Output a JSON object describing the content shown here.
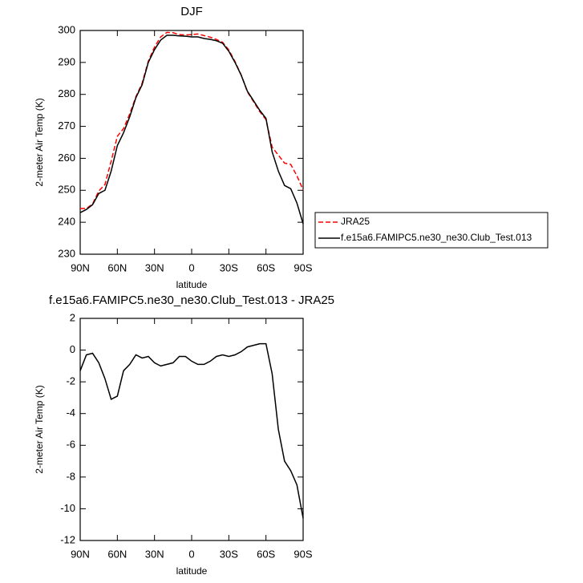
{
  "chart_data": [
    {
      "type": "line",
      "title": "DJF",
      "x_label": "latitude",
      "y_label": "2-meter Air Temp (K)",
      "x": [
        90,
        85,
        80,
        75,
        70,
        65,
        60,
        55,
        50,
        45,
        40,
        35,
        30,
        25,
        20,
        15,
        10,
        5,
        0,
        -5,
        -10,
        -15,
        -20,
        -25,
        -30,
        -35,
        -40,
        -45,
        -50,
        -55,
        -60,
        -65,
        -70,
        -75,
        -80,
        -85,
        -90
      ],
      "xlim": [
        90,
        -90
      ],
      "xticks": [
        {
          "value": 90,
          "label": "90N"
        },
        {
          "value": 60,
          "label": "60N"
        },
        {
          "value": 30,
          "label": "30N"
        },
        0,
        {
          "value": -30,
          "label": "30S"
        },
        {
          "value": -60,
          "label": "60S"
        },
        {
          "value": -90,
          "label": "90S"
        }
      ],
      "ylim": [
        230,
        300
      ],
      "yticks": [
        230,
        240,
        250,
        260,
        270,
        280,
        290,
        300
      ],
      "legend": "right",
      "series": [
        {
          "name": "JRA25",
          "color": "#ff0000",
          "line_style": "dashed",
          "values": [
            244.3,
            244.3,
            245.7,
            249.8,
            251.8,
            259.1,
            266.9,
            269.3,
            273.9,
            279.3,
            283.5,
            290.4,
            294.8,
            298,
            299.4,
            299.3,
            298.7,
            298.6,
            298.7,
            298.9,
            298.4,
            297.9,
            297.2,
            296.3,
            293.9,
            290.3,
            286.1,
            280.8,
            277.7,
            274.6,
            272.1,
            263.5,
            261,
            258.5,
            258.1,
            254.5,
            250.1
          ]
        },
        {
          "name": "f.e15a6.FAMIPC5.ne30_ne30.Club_Test.013",
          "color": "#000000",
          "line_style": "solid",
          "values": [
            243,
            244,
            245.5,
            249,
            250,
            256,
            264,
            268,
            273,
            279,
            283,
            290,
            294,
            297,
            298.5,
            298.5,
            298.3,
            298.2,
            298,
            298,
            297.5,
            297.2,
            296.8,
            296,
            293.5,
            290,
            286,
            281,
            278,
            275,
            272.5,
            262,
            256,
            251.5,
            250.5,
            246,
            239.5
          ]
        }
      ]
    },
    {
      "type": "line",
      "title": "f.e15a6.FAMIPC5.ne30_ne30.Club_Test.013 - JRA25",
      "x_label": "latitude",
      "y_label": "2-meter Air Temp (K)",
      "x": [
        90,
        85,
        80,
        75,
        70,
        65,
        60,
        55,
        50,
        45,
        40,
        35,
        30,
        25,
        20,
        15,
        10,
        5,
        0,
        -5,
        -10,
        -15,
        -20,
        -25,
        -30,
        -35,
        -40,
        -45,
        -50,
        -55,
        -60,
        -65,
        -70,
        -75,
        -80,
        -85,
        -90
      ],
      "xlim": [
        90,
        -90
      ],
      "xticks": [
        {
          "value": 90,
          "label": "90N"
        },
        {
          "value": 60,
          "label": "60N"
        },
        {
          "value": 30,
          "label": "30N"
        },
        0,
        {
          "value": -30,
          "label": "30S"
        },
        {
          "value": -60,
          "label": "60S"
        },
        {
          "value": -90,
          "label": "90S"
        }
      ],
      "ylim": [
        -12,
        2
      ],
      "yticks": [
        -12,
        -10,
        -8,
        -6,
        -4,
        -2,
        0,
        2
      ],
      "series": [
        {
          "color": "#000000",
          "line_style": "solid",
          "values": [
            -1.3,
            -0.3,
            -0.2,
            -0.8,
            -1.8,
            -3.1,
            -2.9,
            -1.3,
            -0.9,
            -0.3,
            -0.5,
            -0.4,
            -0.8,
            -1.0,
            -0.9,
            -0.8,
            -0.4,
            -0.4,
            -0.7,
            -0.9,
            -0.9,
            -0.7,
            -0.4,
            -0.3,
            -0.4,
            -0.3,
            -0.1,
            0.2,
            0.3,
            0.4,
            0.4,
            -1.5,
            -5,
            -7,
            -7.6,
            -8.5,
            -10.6
          ]
        }
      ]
    }
  ]
}
